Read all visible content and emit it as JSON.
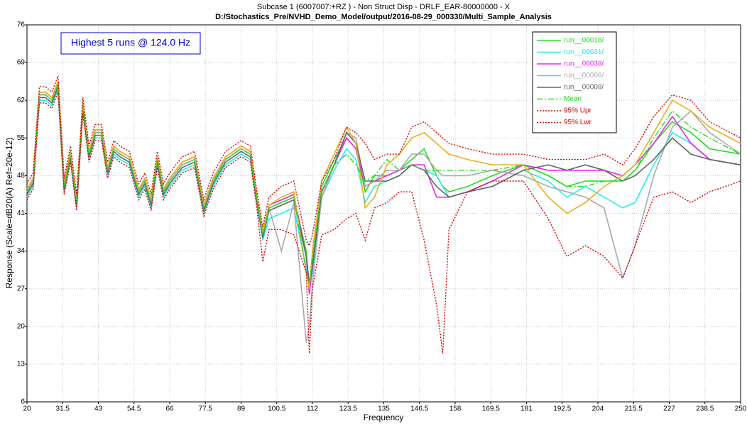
{
  "chart_data": {
    "type": "line",
    "title": "Subcase 1 (6007007:+RZ ) - Non Struct Disp -  DRLF_EAR-80000000 - X",
    "subtitle": "D:/Stochastics_Pre/NVHD_Demo_Model/output/2016-08-29_000330/Multi_Sample_Analysis",
    "x_label": "Frequency",
    "y_label": "Response (Scale=dB20(A) Ref=20e-12)",
    "annotation": "Highest 5 runs @ 124.0 Hz",
    "xlim": [
      20,
      250
    ],
    "xticks": [
      20,
      31.5,
      43,
      54.5,
      66,
      77.5,
      89,
      100.5,
      112,
      123.5,
      135,
      146.5,
      158,
      169.5,
      181,
      192.5,
      204,
      215.5,
      227,
      238.5,
      250
    ],
    "ylim": [
      6,
      76
    ],
    "yticks": [
      6,
      13,
      20,
      27,
      34,
      41,
      48,
      55,
      62,
      69,
      76
    ],
    "grid": true,
    "legend": "top-right",
    "x": [
      20,
      22,
      24,
      26,
      28,
      30,
      32,
      34,
      36,
      38,
      40,
      42,
      44,
      46,
      48,
      50,
      53,
      56,
      58,
      60,
      62,
      64,
      66,
      70,
      74,
      77,
      80,
      84,
      89,
      92,
      94,
      96,
      98,
      102,
      106,
      110,
      111,
      112,
      115,
      119,
      123,
      126,
      129,
      132,
      136,
      140,
      144,
      148,
      152,
      154,
      156,
      162,
      170,
      180,
      188,
      194,
      200,
      206,
      212,
      216,
      222,
      228,
      234,
      240,
      250
    ],
    "series": [
      {
        "name": "run__00018/",
        "color": "#22dd22",
        "style": "solid",
        "values": [
          45,
          47,
          63,
          63,
          62,
          65,
          46,
          52,
          43,
          61,
          52,
          56,
          56,
          49,
          53,
          52,
          51,
          45,
          47,
          43,
          51,
          45,
          47,
          50,
          51,
          42,
          47,
          51,
          53,
          52,
          44,
          37,
          42,
          43,
          44,
          34,
          27,
          32,
          46,
          51,
          55,
          53,
          45,
          48,
          48,
          49,
          51,
          53,
          48,
          46,
          45,
          46,
          48,
          50,
          48,
          46,
          47,
          47,
          47,
          49,
          54,
          58,
          56,
          53,
          52
        ]
      },
      {
        "name": "run__00031/",
        "color": "#22eeee",
        "style": "solid",
        "values": [
          44,
          46,
          62,
          62,
          61,
          64,
          45,
          51,
          42,
          60,
          51,
          55,
          55,
          48,
          52,
          51,
          50,
          44,
          46,
          42,
          50,
          44,
          46,
          49,
          50,
          41,
          46,
          50,
          52,
          51,
          43,
          36,
          40,
          41,
          42,
          31,
          28,
          30,
          44,
          49,
          53,
          51,
          43,
          46,
          47,
          48,
          50,
          49,
          48,
          46,
          44,
          45,
          46,
          49,
          47,
          44,
          46,
          44,
          42,
          43,
          50,
          56,
          54,
          51,
          50
        ]
      },
      {
        "name": "run__00038/",
        "color": "#ee22ee",
        "style": "solid",
        "values": [
          45.5,
          47.5,
          63.5,
          63.5,
          62.5,
          65.5,
          46.5,
          52.5,
          43.5,
          61.5,
          52.5,
          56.5,
          56.5,
          49.5,
          53.5,
          52.5,
          51.5,
          45.5,
          47.5,
          43.5,
          51.5,
          45.5,
          47.5,
          50.5,
          51.5,
          42.5,
          47.5,
          51.5,
          53.5,
          52.5,
          44.5,
          37.5,
          42.5,
          43.5,
          44.5,
          33,
          26,
          31,
          45,
          50,
          55,
          53,
          46,
          47,
          48,
          49,
          50,
          50,
          44,
          44,
          44,
          45,
          47,
          50,
          49,
          49,
          49,
          49,
          48,
          50,
          54,
          59,
          54,
          51,
          50
        ]
      },
      {
        "name": "run__00006/",
        "color": "#aaaaaa",
        "style": "solid",
        "values": [
          45,
          47,
          63,
          63,
          62,
          65,
          46,
          52,
          43,
          61,
          52,
          56,
          56,
          49,
          53,
          52,
          51,
          45,
          47,
          43,
          51,
          45,
          47,
          50,
          51,
          42,
          47,
          51,
          53,
          52,
          44,
          37,
          42,
          34,
          43,
          17,
          20,
          28,
          44,
          50,
          56,
          55,
          46,
          47,
          49,
          49,
          52,
          52,
          49,
          48,
          48,
          48,
          49,
          48,
          46,
          45,
          44,
          42,
          29,
          35,
          48,
          57,
          60,
          56,
          52
        ]
      },
      {
        "name": "run__00008/",
        "color": "#666666",
        "style": "solid",
        "values": [
          44.5,
          46.5,
          62.5,
          62.5,
          61.5,
          64.5,
          45.5,
          51.5,
          42.5,
          60.5,
          51.5,
          55.5,
          55.5,
          48.5,
          52.5,
          51.5,
          50.5,
          44.5,
          46.5,
          42.5,
          50.5,
          44.5,
          46.5,
          49.5,
          50.5,
          41.5,
          46.5,
          50.5,
          52.5,
          51.5,
          43.5,
          36.5,
          41.5,
          42.5,
          43.5,
          33,
          28,
          31,
          45,
          50,
          56,
          54,
          47,
          47,
          47,
          48,
          50,
          49,
          46,
          45,
          44,
          45,
          46,
          49,
          50,
          49,
          50,
          49,
          47,
          48,
          51,
          55,
          52,
          51,
          50
        ]
      },
      {
        "color": "#e8b020",
        "style": "solid",
        "values": [
          45.5,
          47.5,
          63.5,
          63.5,
          62.5,
          65.5,
          46.5,
          52.5,
          43.5,
          61.5,
          52.5,
          56.5,
          56.5,
          49.5,
          53.5,
          52.5,
          51.5,
          45.5,
          47.5,
          43.5,
          51.5,
          45.5,
          47.5,
          50.5,
          51.5,
          42.5,
          47.5,
          51.5,
          53.5,
          52.5,
          44.5,
          37.5,
          42.5,
          44,
          45,
          30,
          27,
          34,
          47,
          52,
          57,
          54,
          42,
          44,
          50,
          52,
          55,
          56,
          54,
          53,
          52,
          51,
          50,
          50,
          44,
          41,
          43,
          46,
          48,
          50,
          56,
          62,
          60,
          57,
          54
        ]
      },
      {
        "name": "Mean",
        "color": "#22dd22",
        "style": "dashdot",
        "values": [
          45,
          47,
          63,
          63,
          62,
          65,
          46,
          52,
          43,
          61,
          52,
          56,
          56,
          49,
          53,
          52,
          51,
          45,
          47,
          43,
          51,
          45,
          47,
          50,
          51,
          42,
          47,
          51,
          53,
          52,
          44,
          37,
          42,
          43,
          44,
          30,
          28,
          33,
          45,
          50,
          52,
          50,
          47,
          48,
          51,
          49,
          50,
          49,
          49,
          49,
          49,
          49,
          49,
          50,
          48,
          46,
          46,
          47,
          47,
          49,
          55,
          60,
          57,
          55,
          52
        ]
      },
      {
        "name": "95% Upr",
        "color": "#dd0000",
        "style": "dotted",
        "values": [
          46.5,
          48.5,
          64.5,
          64.5,
          63.5,
          66.5,
          47.5,
          53.5,
          44.5,
          62.5,
          53.5,
          57.5,
          57.5,
          50.5,
          54.5,
          53.5,
          52.5,
          46.5,
          48.5,
          44.5,
          52.5,
          46.5,
          48.5,
          51.5,
          52.5,
          43.5,
          48.5,
          52.5,
          54.5,
          53.5,
          45.5,
          38.5,
          44,
          46,
          47,
          36,
          35,
          37,
          47,
          51,
          57,
          56,
          54,
          51,
          52,
          52,
          57,
          58,
          56,
          55,
          54,
          53,
          52,
          52,
          51,
          51,
          51,
          52,
          50,
          53,
          59,
          63,
          62,
          58,
          55
        ]
      },
      {
        "name": "95% Lwr",
        "color": "#dd0000",
        "style": "dotted",
        "values": [
          43.5,
          45.5,
          61.5,
          61.5,
          60.5,
          63.5,
          44.5,
          50.5,
          41.5,
          59.5,
          50.5,
          54.5,
          54.5,
          47.5,
          51.5,
          50.5,
          49.5,
          43.5,
          45.5,
          41.5,
          49.5,
          43.5,
          45.5,
          48.5,
          49.5,
          40.5,
          45.5,
          49.5,
          51.5,
          50.5,
          42.5,
          32,
          38,
          38,
          37,
          30,
          15,
          27,
          37,
          38,
          40,
          41,
          36,
          42,
          43,
          45,
          45,
          36,
          24,
          15,
          38,
          45,
          47,
          47,
          40,
          33,
          35,
          33,
          29,
          35,
          44,
          45,
          43,
          45,
          47
        ]
      }
    ]
  }
}
